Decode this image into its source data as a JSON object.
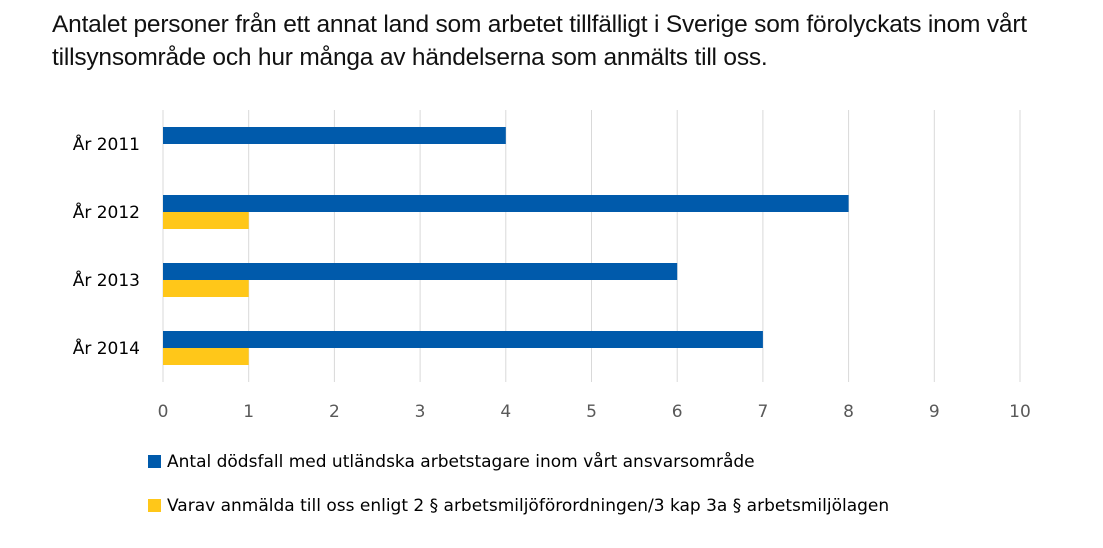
{
  "title_lines": [
    "Antalet personer från ett annat land som arbetet tillfälligt i Sverige som förolyckats inom vårt",
    "tillsynsområde och hur många av händelserna som anmälts till oss."
  ],
  "chart_data": {
    "type": "bar",
    "orientation": "horizontal",
    "title": "Antalet personer från ett annat land som arbetet tillfälligt i Sverige som förolyckats inom vårt tillsynsområde och hur många av händelserna som anmälts till oss.",
    "categories": [
      "År 2011",
      "År 2012",
      "År 2013",
      "År 2014"
    ],
    "series": [
      {
        "name": "Antal dödsfall med utländska arbetstagare inom vårt ansvarsområde",
        "color": "#005AAB",
        "values": [
          4,
          8,
          6,
          7
        ]
      },
      {
        "name": "Varav anmälda till oss enligt 2 § arbetsmiljöförordningen/3 kap 3a § arbetsmiljölagen",
        "color": "#FFC719",
        "values": [
          0,
          1,
          1,
          1
        ]
      }
    ],
    "xlim": [
      0,
      10
    ],
    "xticks": [
      "0",
      "1",
      "2",
      "3",
      "4",
      "5",
      "6",
      "7",
      "8",
      "9",
      "10"
    ],
    "xlabel": "",
    "ylabel": "",
    "grid": true,
    "legend_position": "bottom"
  }
}
